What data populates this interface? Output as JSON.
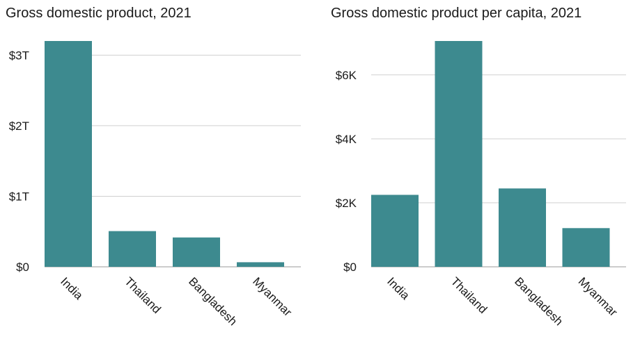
{
  "chart_data": [
    {
      "type": "bar",
      "title": "Gross domestic product, 2021",
      "categories": [
        "India",
        "Thailand",
        "Bangladesh",
        "Myanmar"
      ],
      "values": [
        3200000000000.0,
        506000000000.0,
        416000000000.0,
        65000000000.0
      ],
      "ylim": [
        0,
        3200000000000.0
      ],
      "yticks": [
        0,
        1000000000000.0,
        2000000000000.0,
        3000000000000.0
      ],
      "ytick_labels": [
        "$0",
        "$1T",
        "$2T",
        "$3T"
      ],
      "grid": true,
      "color": "#3d8a8f"
    },
    {
      "type": "bar",
      "title": "Gross domestic product per capita, 2021",
      "categories": [
        "India",
        "Thailand",
        "Bangladesh",
        "Myanmar"
      ],
      "values": [
        2250,
        7060,
        2450,
        1210
      ],
      "ylim": [
        0,
        7060
      ],
      "yticks": [
        0,
        2000,
        4000,
        6000
      ],
      "ytick_labels": [
        "$0",
        "$2K",
        "$4K",
        "$6K"
      ],
      "grid": true,
      "color": "#3d8a8f"
    }
  ]
}
